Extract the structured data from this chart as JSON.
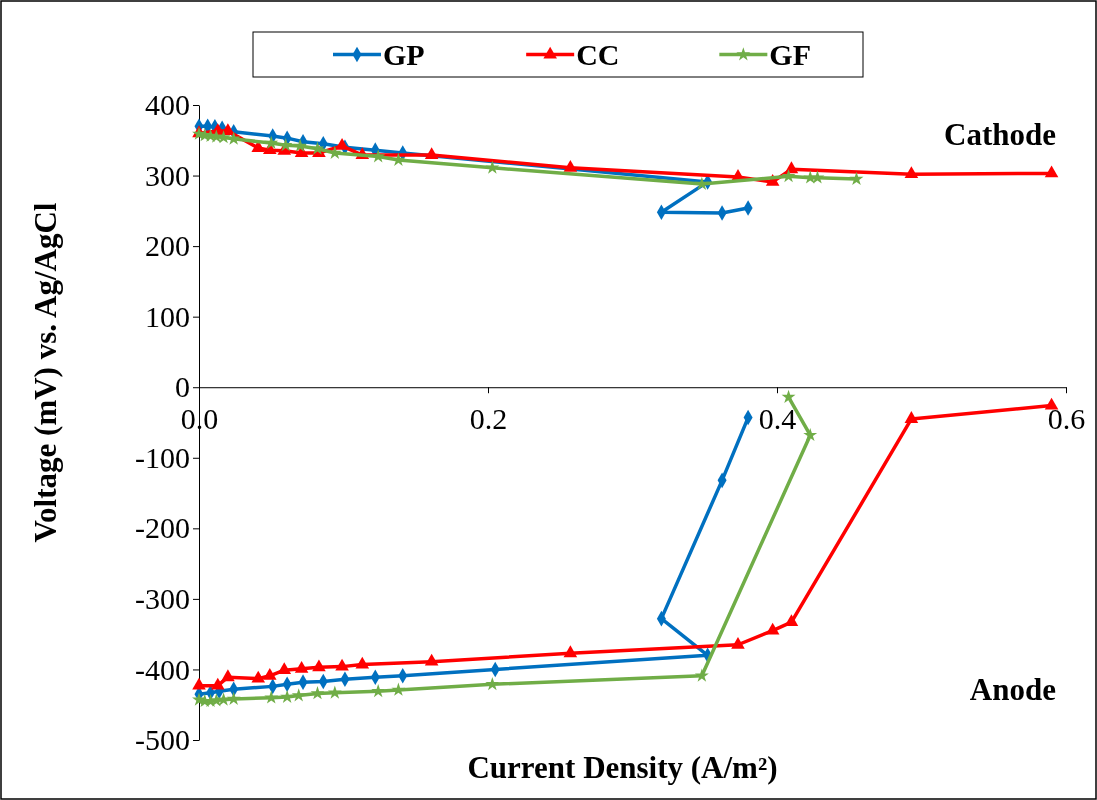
{
  "chart_data": {
    "type": "line",
    "xlabel": "Current Density (A/m²)",
    "ylabel": "Voltage (mV) vs. Ag/AgCl",
    "xlim": [
      0,
      0.6
    ],
    "xticks": [
      {
        "value": 0,
        "label": "0.0"
      },
      0.2,
      0.4,
      0.6
    ],
    "ylim": [
      -500,
      400
    ],
    "yticks": [
      -500,
      -400,
      -300,
      -200,
      -100,
      0,
      100,
      200,
      300,
      400
    ],
    "grid": false,
    "legend": "top",
    "line_style": "solid",
    "annotations": [
      "Cathode",
      "Anode"
    ],
    "series": [
      {
        "name": "GP",
        "color": "#0070c0",
        "marker": "diamond",
        "x": [
          0.0,
          0.006,
          0.011,
          0.016,
          0.024,
          0.051,
          0.061,
          0.072,
          0.086,
          0.101,
          0.122,
          0.141,
          0.352,
          0.32,
          0.362,
          0.38,
          null,
          0.0,
          0.008,
          0.014,
          0.024,
          0.051,
          0.061,
          0.072,
          0.086,
          0.101,
          0.122,
          0.141,
          0.205,
          0.352,
          0.32,
          0.362,
          0.38
        ],
        "values": [
          370,
          370,
          369,
          367,
          362,
          356,
          353,
          348,
          345,
          340,
          336,
          332,
          291,
          248,
          247,
          254,
          null,
          -435,
          -433,
          -431,
          -428,
          -424,
          -421,
          -418,
          -417,
          -414,
          -411,
          -409,
          -400,
          -380,
          -328,
          -132,
          -43
        ]
      },
      {
        "name": "CC",
        "color": "#ff0000",
        "marker": "triangle",
        "x": [
          0.0,
          0.013,
          0.02,
          0.041,
          0.049,
          0.059,
          0.071,
          0.083,
          0.099,
          0.113,
          0.161,
          0.257,
          0.373,
          0.397,
          0.41,
          0.493,
          0.59,
          null,
          0.0,
          0.013,
          0.02,
          0.041,
          0.049,
          0.059,
          0.071,
          0.083,
          0.099,
          0.113,
          0.161,
          0.257,
          0.373,
          0.397,
          0.41,
          0.493,
          0.59
        ],
        "values": [
          360,
          363,
          363,
          339,
          336,
          335,
          332,
          332,
          342,
          329,
          329,
          311,
          298,
          291,
          309,
          302,
          303,
          null,
          -423,
          -423,
          -411,
          -413,
          -409,
          -401,
          -399,
          -397,
          -396,
          -393,
          -389,
          -377,
          -365,
          -345,
          -333,
          -45,
          -26
        ]
      },
      {
        "name": "GF",
        "color": "#70ad47",
        "marker": "star",
        "x": [
          0.0,
          0.004,
          0.008,
          0.012,
          0.017,
          0.024,
          0.05,
          0.06,
          0.07,
          0.082,
          0.094,
          0.124,
          0.138,
          0.203,
          0.348,
          0.408,
          0.423,
          0.428,
          0.455,
          null,
          0.0,
          0.004,
          0.008,
          0.012,
          0.017,
          0.024,
          0.05,
          0.061,
          0.069,
          0.082,
          0.094,
          0.124,
          0.138,
          0.203,
          0.348,
          0.423,
          0.408
        ],
        "values": [
          359,
          357,
          356,
          355,
          354,
          352,
          346,
          343,
          342,
          338,
          332,
          327,
          322,
          311,
          288,
          299,
          297,
          297,
          295,
          null,
          -443,
          -445,
          -445,
          -444,
          -443,
          -442,
          -440,
          -439,
          -437,
          -434,
          -433,
          -431,
          -429,
          -421,
          -409,
          -68,
          -14
        ]
      }
    ]
  }
}
